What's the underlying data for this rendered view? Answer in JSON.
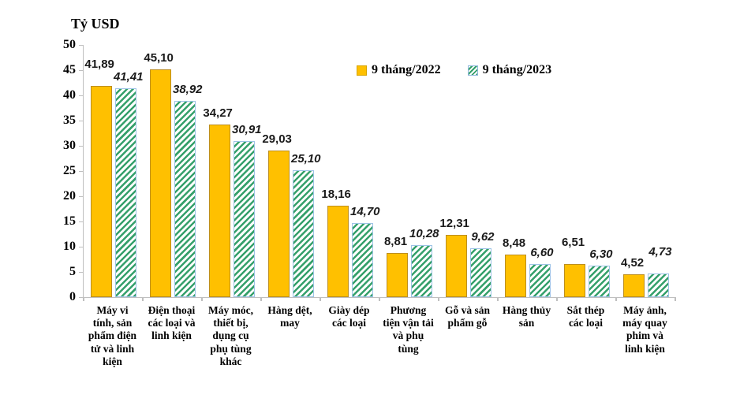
{
  "title": "Tỷ USD",
  "legend": {
    "item_2022": "9 tháng/2022",
    "item_2023": "9 tháng/2023"
  },
  "colors": {
    "bar_2022": "#FFC000",
    "bar_2022_border": "#BD8E1E",
    "bar_2023_hatch": "#35A06B",
    "bar_2023_border": "#9DC3E6",
    "axis_line": "#BFBFBF",
    "text": "#000000"
  },
  "chart_data": {
    "type": "bar",
    "title": "Tỷ USD",
    "xlabel": "",
    "ylabel": "Tỷ USD",
    "ylim": [
      0,
      50
    ],
    "yticks": [
      0,
      5,
      10,
      15,
      20,
      25,
      30,
      35,
      40,
      45,
      50
    ],
    "grid": false,
    "legend_position": "top-center",
    "categories": [
      "Máy vi tính, sản phẩm điện tử và linh kiện",
      "Điện thoại các loại và linh kiện",
      "Máy móc, thiết bị, dụng cụ phụ tùng khác",
      "Hàng dệt, may",
      "Giày dép các loại",
      "Phương tiện vận tải và phụ tùng",
      "Gỗ và sản phẩm gỗ",
      "Hàng thủy sản",
      "Sắt thép các loại",
      "Máy ảnh, máy quay phim và linh kiện"
    ],
    "series": [
      {
        "name": "9 tháng/2022",
        "values": [
          41.89,
          45.1,
          34.27,
          29.03,
          18.16,
          8.81,
          12.31,
          8.48,
          6.51,
          4.52
        ],
        "labels": [
          "41,89",
          "45,10",
          "34,27",
          "29,03",
          "18,16",
          "8,81",
          "12,31",
          "8,48",
          "6,51",
          "4,52"
        ],
        "style": "solid",
        "color": "#FFC000"
      },
      {
        "name": "9 tháng/2023",
        "values": [
          41.41,
          38.92,
          30.91,
          25.1,
          14.7,
          10.28,
          9.62,
          6.6,
          6.3,
          4.73
        ],
        "labels": [
          "41,41",
          "38,92",
          "30,91",
          "25,10",
          "14,70",
          "10,28",
          "9,62",
          "6,60",
          "6,30",
          "4,73"
        ],
        "style": "hatched",
        "color": "#35A06B"
      }
    ]
  }
}
